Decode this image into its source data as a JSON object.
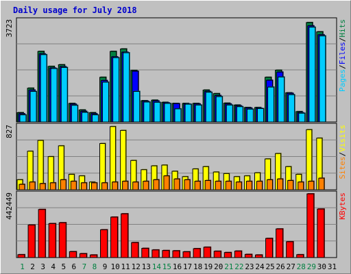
{
  "chart_data": {
    "type": "bar",
    "title": "Daily usage for July 2018",
    "categories": [
      "1",
      "2",
      "3",
      "4",
      "5",
      "6",
      "7",
      "8",
      "9",
      "10",
      "11",
      "12",
      "13",
      "14",
      "15",
      "16",
      "17",
      "18",
      "19",
      "20",
      "21",
      "22",
      "23",
      "24",
      "25",
      "26",
      "27",
      "28",
      "29",
      "30",
      "31"
    ],
    "weekend_days": [
      "1",
      "7",
      "8",
      "14",
      "15",
      "21",
      "22",
      "28",
      "29"
    ],
    "panels": [
      {
        "id": "top",
        "max_label": "3723",
        "ylim": [
          0,
          3723
        ],
        "axis_labels": [
          {
            "text": "Pages",
            "color": "#00ccff"
          },
          {
            "text": "Files",
            "color": "#0000ff"
          },
          {
            "text": "Hits",
            "color": "#008040"
          }
        ],
        "series": [
          {
            "name": "Hits",
            "color": "#008040",
            "values": [
              340,
              1240,
              2590,
              2040,
              2100,
              680,
              440,
              340,
              1640,
              2590,
              2680,
              1890,
              780,
              800,
              720,
              680,
              680,
              680,
              1170,
              1040,
              690,
              620,
              530,
              530,
              1640,
              1900,
              1070,
              380,
              3650,
              3310
            ]
          },
          {
            "name": "Files",
            "color": "#0000ff",
            "values": [
              300,
              1170,
              2500,
              1980,
              2030,
              650,
              390,
              300,
              1520,
              2390,
              2560,
              1860,
              760,
              770,
              700,
              670,
              660,
              660,
              1120,
              970,
              660,
              590,
              510,
              500,
              1530,
              1830,
              1050,
              340,
              3530,
              3200
            ]
          },
          {
            "name": "Pages",
            "color": "#00ccff",
            "values": [
              260,
              1120,
              2470,
              1960,
              2000,
              610,
              350,
              260,
              1460,
              2360,
              2540,
              1120,
              730,
              720,
              680,
              480,
              650,
              620,
              1090,
              930,
              620,
              560,
              470,
              490,
              1280,
              1650,
              1000,
              320,
              3480,
              3160
            ]
          }
        ]
      },
      {
        "id": "middle",
        "max_label": "827",
        "ylim": [
          0,
          827
        ],
        "axis_labels": [
          {
            "text": "Sites",
            "color": "#ff8000"
          },
          {
            "text": "Visits",
            "color": "#ffff00"
          }
        ],
        "series": [
          {
            "name": "Visits",
            "color": "#ffff00",
            "values": [
              130,
              500,
              640,
              430,
              570,
              200,
              180,
              100,
              600,
              820,
              770,
              380,
              260,
              310,
              320,
              240,
              170,
              270,
              300,
              230,
              210,
              170,
              180,
              220,
              400,
              470,
              300,
              200,
              780,
              670
            ]
          },
          {
            "name": "Sites",
            "color": "#ff8000",
            "values": [
              70,
              100,
              80,
              90,
              130,
              110,
              90,
              90,
              90,
              100,
              110,
              100,
              110,
              130,
              180,
              140,
              130,
              110,
              120,
              110,
              110,
              100,
              110,
              110,
              130,
              140,
              120,
              100,
              110,
              150
            ]
          }
        ]
      },
      {
        "id": "bottom",
        "max_label": "442449",
        "ylim": [
          0,
          442449
        ],
        "axis_labels": [
          {
            "text": "KBytes",
            "color": "#ff0000"
          }
        ],
        "series": [
          {
            "name": "KBytes",
            "color": "#ff0000",
            "values": [
              20000,
              226000,
              334000,
              236000,
              242000,
              41000,
              27000,
              18000,
              193000,
              281000,
              304000,
              104000,
              64000,
              53000,
              49000,
              47000,
              40000,
              62000,
              72000,
              44000,
              35000,
              45000,
              22000,
              18000,
              133000,
              199000,
              110000,
              20000,
              442449,
              337000
            ]
          }
        ]
      }
    ]
  }
}
